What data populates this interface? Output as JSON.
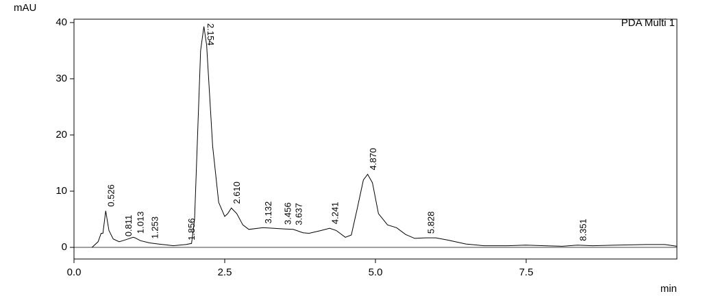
{
  "chart_data": {
    "type": "line",
    "y_label": "mAU",
    "x_label": "min",
    "xlim": [
      0,
      10
    ],
    "ylim": [
      -2.07,
      40.6
    ],
    "xticks": [
      {
        "value": 0,
        "label": "0.0"
      },
      2.5,
      {
        "value": 5,
        "label": "5.0"
      },
      7.5
    ],
    "yticks": [
      0,
      10,
      20,
      30,
      40
    ],
    "x": [
      0.3,
      0.4,
      0.45,
      0.48,
      0.526,
      0.58,
      0.65,
      0.75,
      0.811,
      0.9,
      0.98,
      1.013,
      1.1,
      1.253,
      1.4,
      1.65,
      1.856,
      1.95,
      2.0,
      2.05,
      2.1,
      2.154,
      2.2,
      2.3,
      2.4,
      2.5,
      2.55,
      2.61,
      2.7,
      2.8,
      2.9,
      3.132,
      3.3,
      3.456,
      3.637,
      3.8,
      3.9,
      4.1,
      4.241,
      4.35,
      4.5,
      4.6,
      4.7,
      4.8,
      4.87,
      4.95,
      5.05,
      5.2,
      5.35,
      5.5,
      5.65,
      5.828,
      6.0,
      6.2,
      6.5,
      6.8,
      7.2,
      7.5,
      7.8,
      8.1,
      8.351,
      8.6,
      9.0,
      9.5,
      9.8,
      10
    ],
    "series": [
      {
        "name": "PDA Multi 1",
        "color": "#000000",
        "values": [
          0,
          1,
          2.5,
          2.5,
          6.5,
          3,
          1.5,
          1.0,
          1.2,
          1.5,
          1.8,
          1.7,
          1.2,
          0.8,
          0.6,
          0.3,
          0.5,
          0.7,
          5,
          20,
          35,
          39.3,
          36,
          18,
          8,
          5.5,
          6,
          7,
          6,
          4,
          3.2,
          3.5,
          3.4,
          3.3,
          3.2,
          2.6,
          2.5,
          3,
          3.4,
          3.0,
          1.8,
          2.2,
          7,
          12,
          13,
          11.5,
          6,
          4,
          3.5,
          2.3,
          1.6,
          1.7,
          1.7,
          1.3,
          0.6,
          0.3,
          0.3,
          0.4,
          0.3,
          0.2,
          0.4,
          0.3,
          0.4,
          0.5,
          0.5,
          0.2
        ]
      }
    ],
    "peaks": [
      {
        "value": 0.526,
        "label": "0.526"
      },
      {
        "value": 0.811,
        "label": "0.811"
      },
      {
        "value": 1.013,
        "label": "1.013"
      },
      {
        "value": 1.253,
        "label": "1.253"
      },
      {
        "value": 1.856,
        "label": "1.856"
      },
      {
        "value": 2.154,
        "label": "2.154"
      },
      {
        "value": 2.61,
        "label": "2.610"
      },
      {
        "value": 3.132,
        "label": "3.132"
      },
      {
        "value": 3.456,
        "label": "3.456"
      },
      {
        "value": 3.637,
        "label": "3.637"
      },
      {
        "value": 4.241,
        "label": "4.241"
      },
      {
        "value": 4.87,
        "label": "4.870"
      },
      {
        "value": 5.828,
        "label": "5.828"
      },
      {
        "value": 8.351,
        "label": "8.351"
      }
    ]
  }
}
